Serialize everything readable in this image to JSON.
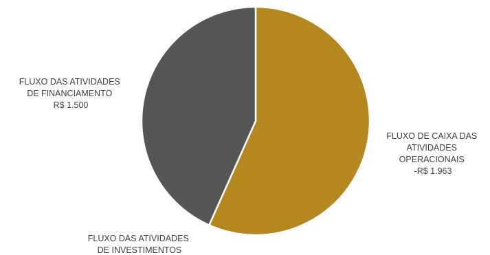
{
  "chart_data": {
    "type": "pie",
    "categories": [
      "FLUXO DE CAIXA DAS ATIVIDADES OPERACIONAIS",
      "FLUXO DAS ATIVIDADES DE INVESTIMENTOS",
      "FLUXO DAS ATIVIDADES DE FINANCIAMENTO"
    ],
    "values": [
      1963,
      0,
      1500
    ],
    "colors": [
      "#b5871f",
      "#b5871f",
      "#555555"
    ],
    "labels": [
      {
        "lines": [
          "FLUXO DE CAIXA DAS",
          "ATIVIDADES",
          "OPERACIONAIS",
          "-R$ 1.963"
        ]
      },
      {
        "lines": [
          "FLUXO DAS ATIVIDADES",
          "DE INVESTIMENTOS"
        ]
      },
      {
        "lines": [
          "FLUXO DAS ATIVIDADES",
          "DE FINANCIAMENTO",
          "R$ 1.500"
        ]
      }
    ]
  }
}
